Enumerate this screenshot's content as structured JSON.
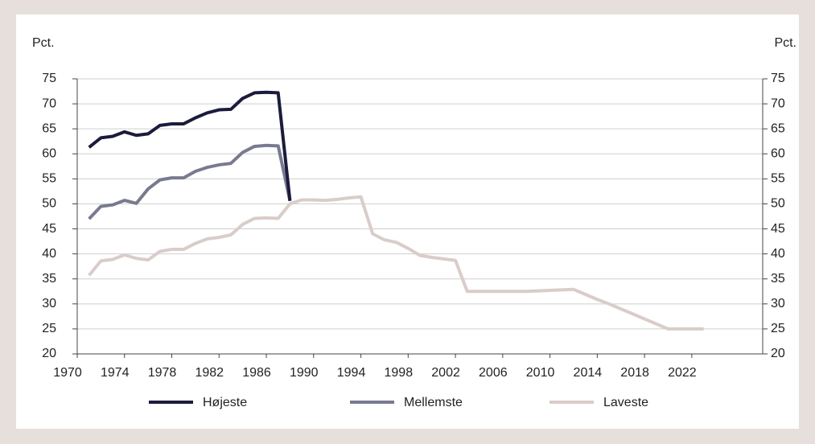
{
  "chart_data": {
    "type": "line",
    "y_label": "Pct.",
    "y2_label": "Pct.",
    "x": [
      1971,
      1972,
      1973,
      1974,
      1975,
      1976,
      1977,
      1978,
      1979,
      1980,
      1981,
      1982,
      1983,
      1984,
      1985,
      1986,
      1987,
      1988,
      1989,
      1990,
      1991,
      1992,
      1993,
      1994,
      1995,
      1996,
      1997,
      1998,
      1999,
      2000,
      2001,
      2002,
      2003,
      2004,
      2005,
      2006,
      2007,
      2008,
      2009,
      2010,
      2011,
      2012,
      2013,
      2014,
      2015,
      2016,
      2017,
      2018,
      2019,
      2020,
      2021,
      2022,
      2023
    ],
    "series": [
      {
        "name": "Højeste",
        "color": "#1b1b3d",
        "values": [
          61.3,
          63.2,
          63.5,
          64.4,
          63.7,
          64.0,
          65.7,
          66.0,
          66.0,
          67.2,
          68.2,
          68.8,
          68.9,
          71.1,
          72.2,
          72.3,
          72.2,
          50.6,
          null,
          null,
          null,
          null,
          null,
          null,
          null,
          null,
          null,
          null,
          null,
          null,
          null,
          null,
          null,
          null,
          null,
          null,
          null,
          null,
          null,
          null,
          null,
          null,
          null,
          null,
          null,
          null,
          null,
          null,
          null,
          null,
          null,
          null,
          null
        ]
      },
      {
        "name": "Mellemste",
        "color": "#787a90",
        "values": [
          47.0,
          49.5,
          49.8,
          50.7,
          50.1,
          53.0,
          54.8,
          55.2,
          55.2,
          56.5,
          57.3,
          57.8,
          58.1,
          60.3,
          61.5,
          61.7,
          61.6,
          50.6,
          null,
          null,
          null,
          null,
          null,
          null,
          null,
          null,
          null,
          null,
          null,
          null,
          null,
          null,
          null,
          null,
          null,
          null,
          null,
          null,
          null,
          null,
          null,
          null,
          null,
          null,
          null,
          null,
          null,
          null,
          null,
          null,
          null,
          null,
          null
        ]
      },
      {
        "name": "Laveste",
        "color": "#d9cdc9",
        "values": [
          35.7,
          38.6,
          38.9,
          39.8,
          39.1,
          38.8,
          40.5,
          40.9,
          40.9,
          42.1,
          43.0,
          43.3,
          43.8,
          45.9,
          47.1,
          47.2,
          47.1,
          50.0,
          50.8,
          50.8,
          50.7,
          50.9,
          51.2,
          51.4,
          44.0,
          42.8,
          42.3,
          41.1,
          39.7,
          39.3,
          39.0,
          38.7,
          32.5,
          32.5,
          32.5,
          32.5,
          32.5,
          32.5,
          32.6,
          32.7,
          32.8,
          32.9,
          31.9,
          30.9,
          30.0,
          29.0,
          28.0,
          27.0,
          26.0,
          25.0,
          25.0,
          25.0,
          25.0
        ]
      }
    ],
    "xlim": [
      1970,
      2028
    ],
    "xticks": [
      1970,
      1974,
      1978,
      1982,
      1986,
      1990,
      1994,
      1998,
      2002,
      2006,
      2010,
      2014,
      2018,
      2022
    ],
    "ylim": [
      20,
      75
    ],
    "yticks": [
      20,
      25,
      30,
      35,
      40,
      45,
      50,
      55,
      60,
      65,
      70,
      75
    ],
    "y2lim": [
      20,
      75
    ],
    "y2ticks": [
      20,
      25,
      30,
      35,
      40,
      45,
      50,
      55,
      60,
      65,
      70,
      75
    ],
    "grid": true
  }
}
